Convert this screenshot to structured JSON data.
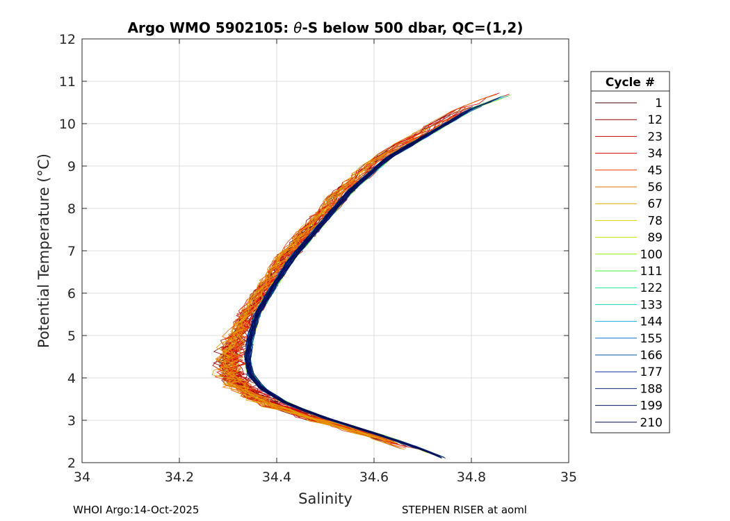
{
  "footer": {
    "left": "WHOI Argo:14-Oct-2025",
    "right": "STEPHEN RISER at aoml"
  },
  "chart_data": {
    "type": "line",
    "title": "Argo WMO 5902105: θ-S below 500 dbar,  QC=(1,2)",
    "xlabel": "Salinity",
    "ylabel": "Potential Temperature (°C)",
    "xlim": [
      34,
      35
    ],
    "ylim": [
      2,
      12
    ],
    "xticks": [
      34,
      34.2,
      34.4,
      34.6,
      34.8,
      35
    ],
    "xtick_labels": [
      "34",
      "34.2",
      "34.4",
      "34.6",
      "34.8",
      "35"
    ],
    "yticks": [
      2,
      3,
      4,
      5,
      6,
      7,
      8,
      9,
      10,
      11,
      12
    ],
    "ytick_labels": [
      "2",
      "3",
      "4",
      "5",
      "6",
      "7",
      "8",
      "9",
      "10",
      "11",
      "12"
    ],
    "grid": true,
    "legend": {
      "title": "Cycle #",
      "placement": "right-outside",
      "entries": [
        "1",
        "12",
        "23",
        "34",
        "45",
        "56",
        "67",
        "78",
        "89",
        "100",
        "111",
        "122",
        "133",
        "144",
        "155",
        "166",
        "177",
        "188",
        "199",
        "210"
      ],
      "colors": [
        "#3d0000",
        "#8c0000",
        "#c00000",
        "#e60000",
        "#f23c00",
        "#e66e00",
        "#e6a000",
        "#e6d200",
        "#c8e600",
        "#8cf000",
        "#46f03c",
        "#1ee68c",
        "#14d2be",
        "#14aadc",
        "#0a78c8",
        "#0050aa",
        "#0a2c96",
        "#08207a",
        "#061464",
        "#000a50"
      ]
    },
    "series_curve": {
      "salinity": [
        34.755,
        34.69,
        34.6,
        34.5,
        34.42,
        34.37,
        34.345,
        34.34,
        34.345,
        34.36,
        34.39,
        34.43,
        34.49,
        34.55,
        34.63,
        34.72,
        34.8,
        34.88
      ],
      "theta": [
        2.05,
        2.35,
        2.7,
        3.05,
        3.4,
        3.75,
        4.1,
        4.5,
        4.9,
        5.5,
        6.1,
        6.8,
        7.6,
        8.4,
        9.2,
        9.8,
        10.35,
        10.7
      ]
    }
  }
}
